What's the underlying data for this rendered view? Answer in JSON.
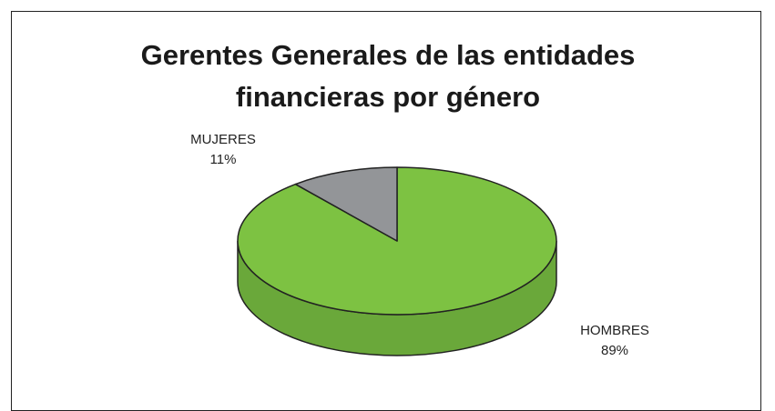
{
  "chart_data": {
    "type": "pie",
    "title": "Gerentes Generales de las entidades financieras por género",
    "categories": [
      "HOMBRES",
      "MUJERES"
    ],
    "values": [
      89,
      11
    ],
    "value_labels": [
      "89%",
      "11%"
    ],
    "colors": [
      "#7dc242",
      "#939598"
    ]
  }
}
